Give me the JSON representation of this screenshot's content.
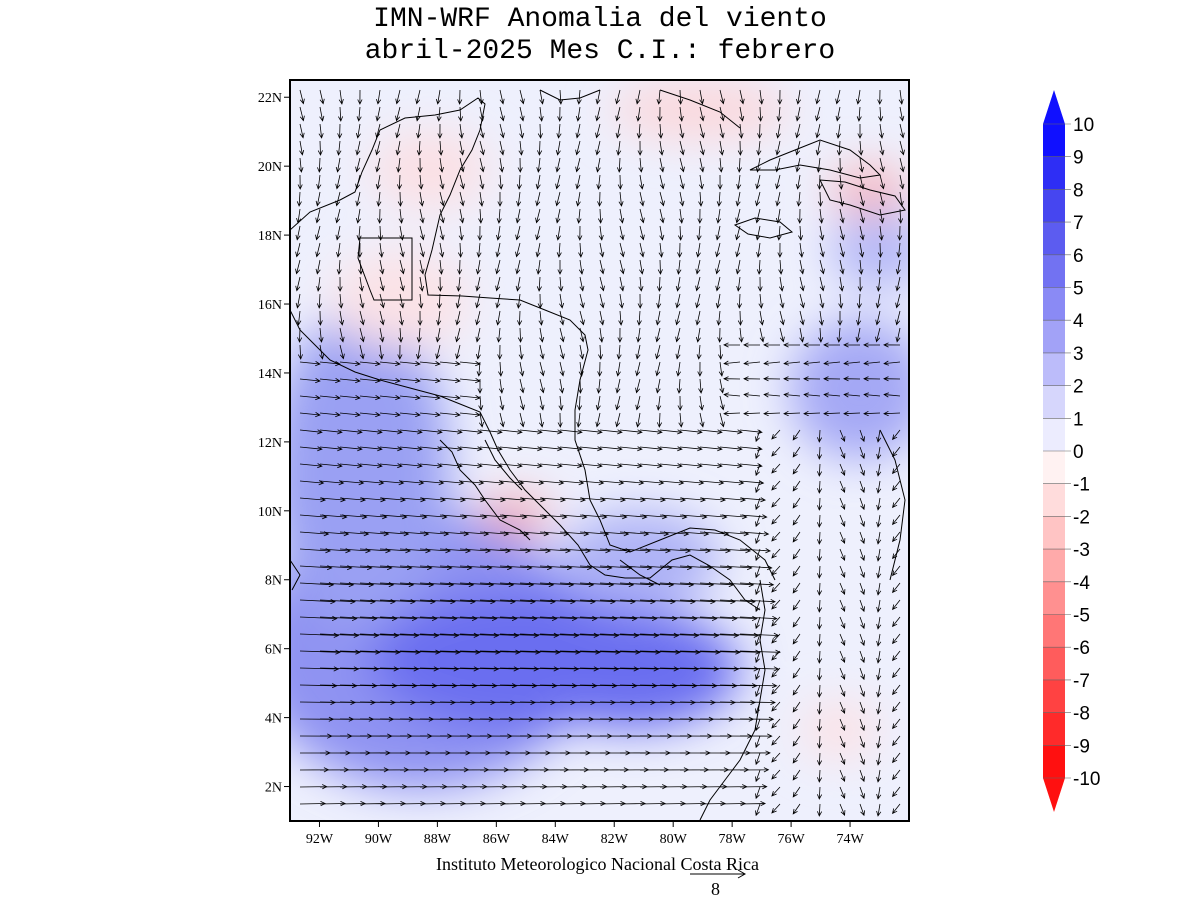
{
  "title": {
    "line1": "IMN-WRF Anomalia del viento",
    "line2": "abril-2025 Mes C.I.: febrero"
  },
  "credit": "Instituto Meteorologico Nacional Costa Rica",
  "reference_vector": {
    "value": "8"
  },
  "axes": {
    "lat_labels": [
      "2N",
      "4N",
      "6N",
      "8N",
      "10N",
      "12N",
      "14N",
      "16N",
      "18N",
      "20N",
      "22N"
    ],
    "lat_values": [
      2,
      4,
      6,
      8,
      10,
      12,
      14,
      16,
      18,
      20,
      22
    ],
    "lon_labels": [
      "92W",
      "90W",
      "88W",
      "86W",
      "84W",
      "82W",
      "80W",
      "78W",
      "76W",
      "74W"
    ],
    "lon_values": [
      -92,
      -90,
      -88,
      -86,
      -84,
      -82,
      -80,
      -78,
      -76,
      -74
    ],
    "lat_range": [
      1.0,
      22.5
    ],
    "lon_range": [
      -93.0,
      -72.0
    ]
  },
  "colorbar": {
    "labels": [
      "10",
      "9",
      "8",
      "7",
      "6",
      "5",
      "4",
      "3",
      "2",
      "1",
      "0",
      "-1",
      "-2",
      "-3",
      "-4",
      "-5",
      "-6",
      "-7",
      "-8",
      "-9",
      "-10"
    ],
    "colors": [
      "#1010ff",
      "#2e2ef5",
      "#4646f0",
      "#5c5cf0",
      "#7272f2",
      "#8a8af5",
      "#a2a2f7",
      "#bcbcfa",
      "#d6d6fc",
      "#ececfe",
      "#fff2f2",
      "#ffdcdc",
      "#ffc4c4",
      "#ffaaaa",
      "#ff9090",
      "#ff7676",
      "#ff5c5c",
      "#ff4242",
      "#ff2a2a",
      "#ff1010"
    ],
    "top_arrow_color": "#1010ff",
    "bottom_arrow_color": "#ff1010"
  }
}
